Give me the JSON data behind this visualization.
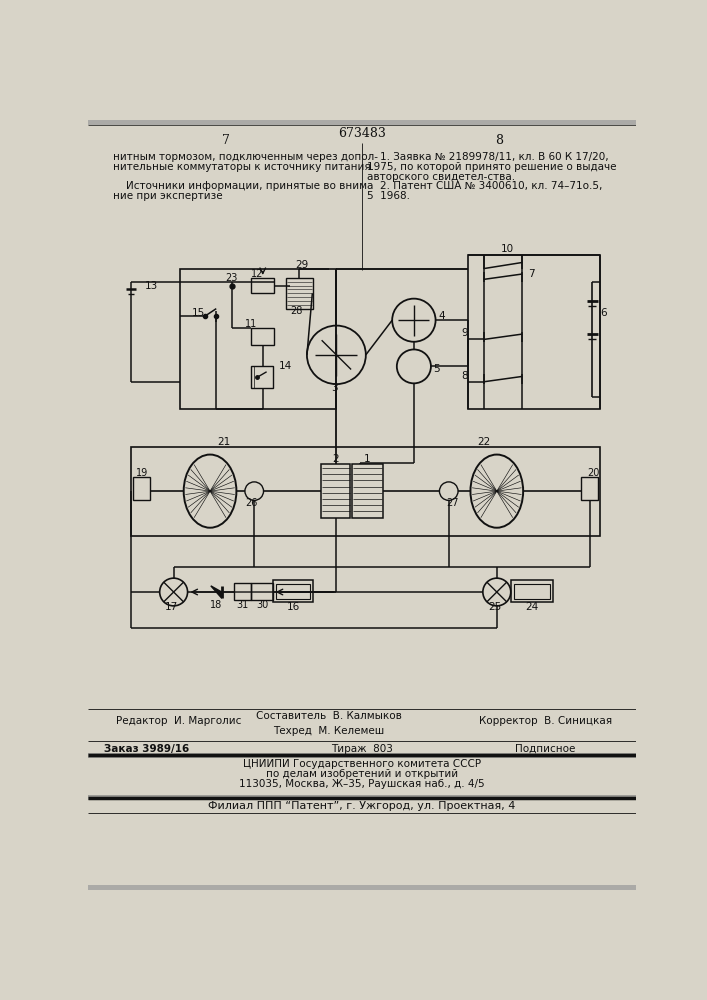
{
  "page_color": "#d8d4c8",
  "text_color": "#111111",
  "line_color": "#111111",
  "title_number": "673483",
  "page_left": "7",
  "page_right": "8",
  "left_col_lines": [
    "нитным тормозом, подключенным через допол-",
    "нительные коммутаторы к источнику питания.",
    "",
    "    Источники информации, принятые во внима",
    "ние при экспертизе"
  ],
  "right_col_lines": [
    "    1. Заявка № 2189978/11, кл. В 60 К 17/20,",
    "1975, по которой принято решение о выдаче",
    "авторского свидетел-ства.",
    "    2. Патент США № 3400610, кл. 74–71о.5,",
    "5  1968."
  ],
  "bottom_editor": "Редактор  И. Марголис",
  "bottom_composer": "Составитель  В. Калмыков",
  "bottom_tech": "Техред  М. Келемеш",
  "bottom_corrector": "Корректор  В. Синицкая",
  "bottom_zakaz": "Заказ 3989/16",
  "bottom_tirazh": "Тираж  803",
  "bottom_podpisnoe": "Подписное",
  "bottom_org1": "ЦНИИПИ Государственного комитета СССР",
  "bottom_org2": "по делам изобретений и открытий",
  "bottom_addr": "113035, Москва, Ж–35, Раушская наб., д. 4/5",
  "bottom_filial": "Филиал ППП “Патент”, г. Ужгород, ул. Проектная, 4"
}
